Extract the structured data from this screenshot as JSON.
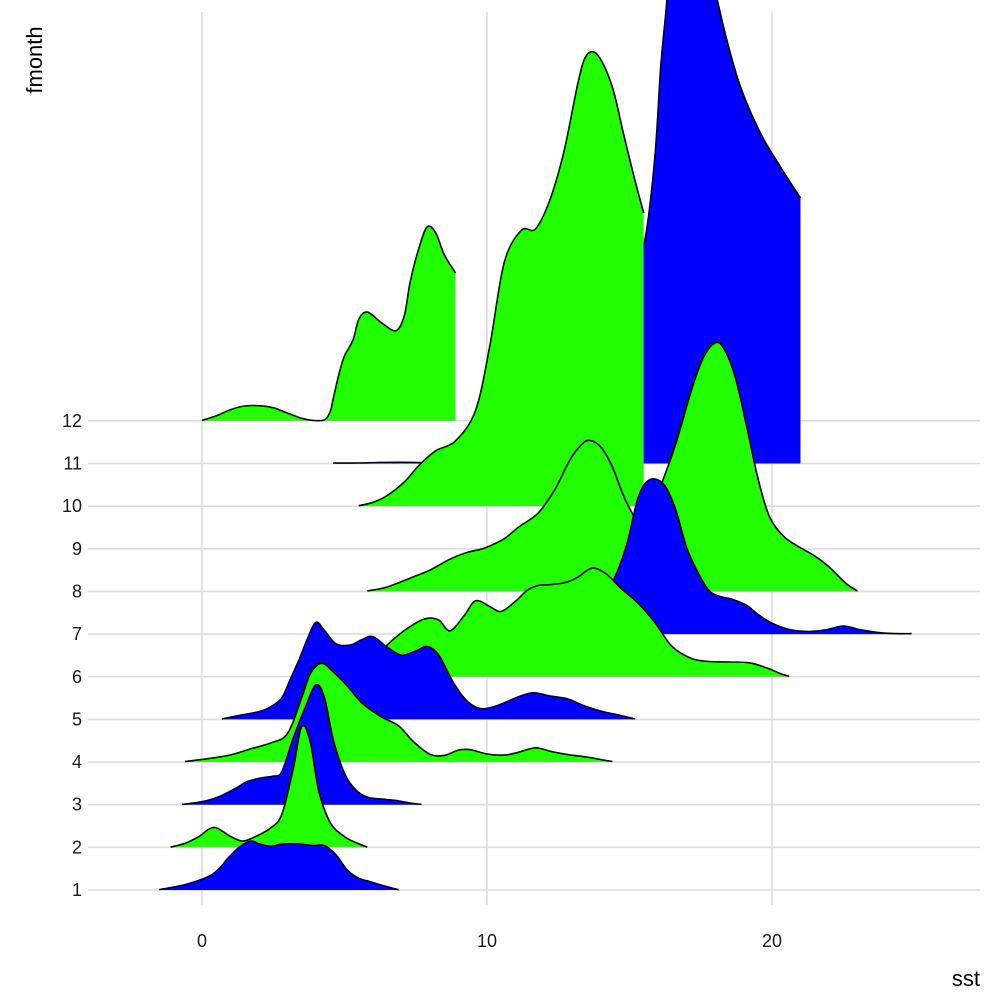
{
  "chart_data": {
    "type": "ridgeline",
    "xlabel": "sst",
    "ylabel": "fmonth",
    "x_ticks": [
      0,
      10,
      20
    ],
    "xlim": [
      -4,
      27.3
    ],
    "grid": true,
    "colors": {
      "odd": "#0000ff",
      "even": "#22ff00"
    },
    "series": [
      {
        "name": "1",
        "fill": "#0000ff",
        "range": [
          -1.5,
          6.9
        ],
        "points": [
          [
            -1.5,
            0.3
          ],
          [
            -0.6,
            5.4
          ],
          [
            0.2,
            13.1
          ],
          [
            0.6,
            21.2
          ],
          [
            0.9,
            31.4
          ],
          [
            1.3,
            42.6
          ],
          [
            1.7,
            48.9
          ],
          [
            2.0,
            46.2
          ],
          [
            2.4,
            43.6
          ],
          [
            2.7,
            45.3
          ],
          [
            3.0,
            46.2
          ],
          [
            3.5,
            45.7
          ],
          [
            3.9,
            44.4
          ],
          [
            4.3,
            44.4
          ],
          [
            4.7,
            35.3
          ],
          [
            5.1,
            19.9
          ],
          [
            5.5,
            11.8
          ],
          [
            5.9,
            8.4
          ],
          [
            6.3,
            4.9
          ],
          [
            6.7,
            1.7
          ],
          [
            6.9,
            0.3
          ]
        ]
      },
      {
        "name": "2",
        "fill": "#22ff00",
        "range": [
          -1.1,
          5.8
        ],
        "points": [
          [
            -1.1,
            0.2
          ],
          [
            -0.6,
            4.0
          ],
          [
            -0.1,
            11.0
          ],
          [
            0.2,
            17.6
          ],
          [
            0.4,
            20.0
          ],
          [
            0.6,
            18.3
          ],
          [
            1.0,
            11.0
          ],
          [
            1.4,
            6.4
          ],
          [
            1.8,
            9.8
          ],
          [
            2.4,
            19.2
          ],
          [
            2.8,
            33.0
          ],
          [
            3.2,
            78.4
          ],
          [
            3.5,
            120.8
          ],
          [
            3.8,
            105.4
          ],
          [
            4.1,
            56.4
          ],
          [
            4.5,
            24.7
          ],
          [
            5.0,
            10.7
          ],
          [
            5.4,
            4.8
          ],
          [
            5.8,
            0.2
          ]
        ]
      },
      {
        "name": "3",
        "fill": "#0000ff",
        "range": [
          -0.7,
          7.7
        ],
        "points": [
          [
            -0.7,
            0.3
          ],
          [
            0.0,
            3.0
          ],
          [
            0.6,
            8.1
          ],
          [
            1.2,
            16.7
          ],
          [
            1.6,
            23.3
          ],
          [
            2.1,
            26.9
          ],
          [
            2.5,
            28.5
          ],
          [
            2.8,
            33.0
          ],
          [
            3.2,
            66.3
          ],
          [
            3.6,
            95.5
          ],
          [
            4.0,
            119.7
          ],
          [
            4.3,
            106.7
          ],
          [
            4.6,
            65.8
          ],
          [
            5.0,
            31.4
          ],
          [
            5.4,
            14.8
          ],
          [
            5.8,
            7.6
          ],
          [
            6.3,
            5.6
          ],
          [
            6.8,
            4.3
          ],
          [
            7.3,
            1.7
          ],
          [
            7.7,
            0.3
          ]
        ]
      },
      {
        "name": "4",
        "fill": "#22ff00",
        "range": [
          -0.6,
          14.4
        ],
        "points": [
          [
            -0.6,
            0.5
          ],
          [
            0.3,
            3.8
          ],
          [
            1.0,
            7.1
          ],
          [
            1.7,
            13.1
          ],
          [
            2.4,
            19.0
          ],
          [
            3.0,
            28.5
          ],
          [
            3.5,
            64.2
          ],
          [
            3.8,
            88.3
          ],
          [
            4.2,
            98.8
          ],
          [
            4.6,
            90.2
          ],
          [
            5.1,
            76.0
          ],
          [
            5.6,
            59.4
          ],
          [
            6.3,
            45.1
          ],
          [
            6.9,
            36.3
          ],
          [
            7.4,
            20.9
          ],
          [
            8.0,
            7.8
          ],
          [
            8.5,
            6.6
          ],
          [
            9.0,
            11.9
          ],
          [
            9.4,
            12.4
          ],
          [
            10.0,
            8.0
          ],
          [
            10.6,
            6.9
          ],
          [
            11.1,
            9.7
          ],
          [
            11.7,
            14.2
          ],
          [
            12.2,
            10.9
          ],
          [
            12.8,
            7.6
          ],
          [
            13.5,
            5.0
          ],
          [
            14.0,
            2.4
          ],
          [
            14.4,
            0.5
          ]
        ]
      },
      {
        "name": "5",
        "fill": "#0000ff",
        "range": [
          0.7,
          15.2
        ],
        "points": [
          [
            0.7,
            0.5
          ],
          [
            1.4,
            4.5
          ],
          [
            2.0,
            7.8
          ],
          [
            2.4,
            12.4
          ],
          [
            2.8,
            21.6
          ],
          [
            3.1,
            40.2
          ],
          [
            3.4,
            59.2
          ],
          [
            3.7,
            80.6
          ],
          [
            4.0,
            97.1
          ],
          [
            4.3,
            88.8
          ],
          [
            4.7,
            75.7
          ],
          [
            5.2,
            74.3
          ],
          [
            5.6,
            79.7
          ],
          [
            6.0,
            82.8
          ],
          [
            6.5,
            72.2
          ],
          [
            7.0,
            64.2
          ],
          [
            7.5,
            68.3
          ],
          [
            7.9,
            72.9
          ],
          [
            8.3,
            64.7
          ],
          [
            8.8,
            37.9
          ],
          [
            9.3,
            18.5
          ],
          [
            9.8,
            10.7
          ],
          [
            10.4,
            14.2
          ],
          [
            11.0,
            21.4
          ],
          [
            11.6,
            26.6
          ],
          [
            12.2,
            23.5
          ],
          [
            12.8,
            20.7
          ],
          [
            13.4,
            13.8
          ],
          [
            14.0,
            8.3
          ],
          [
            14.6,
            4.5
          ],
          [
            15.2,
            0.5
          ]
        ]
      },
      {
        "name": "6",
        "fill": "#22ff00",
        "range": [
          5.0,
          20.6
        ],
        "points": [
          [
            5.0,
            0.5
          ],
          [
            5.8,
            11.4
          ],
          [
            6.5,
            31.8
          ],
          [
            7.1,
            46.2
          ],
          [
            7.8,
            57.8
          ],
          [
            8.3,
            56.9
          ],
          [
            8.7,
            45.9
          ],
          [
            9.2,
            61.1
          ],
          [
            9.6,
            76.0
          ],
          [
            10.1,
            70.1
          ],
          [
            10.5,
            65.4
          ],
          [
            11.0,
            75.5
          ],
          [
            11.4,
            86.2
          ],
          [
            11.8,
            91.3
          ],
          [
            12.3,
            92.3
          ],
          [
            12.8,
            94.6
          ],
          [
            13.2,
            99.8
          ],
          [
            13.7,
            108.6
          ],
          [
            14.2,
            102.4
          ],
          [
            14.7,
            88.5
          ],
          [
            15.3,
            73.6
          ],
          [
            15.9,
            54.0
          ],
          [
            16.5,
            30.1
          ],
          [
            17.2,
            18.0
          ],
          [
            17.8,
            15.2
          ],
          [
            18.5,
            14.7
          ],
          [
            19.2,
            14.0
          ],
          [
            19.8,
            9.0
          ],
          [
            20.3,
            3.1
          ],
          [
            20.6,
            0.5
          ]
        ]
      },
      {
        "name": "7",
        "fill": "#0000ff",
        "range": [
          11.3,
          24.9
        ],
        "points": [
          [
            11.3,
            0.5
          ],
          [
            11.9,
            1.7
          ],
          [
            12.6,
            6.4
          ],
          [
            13.3,
            18.3
          ],
          [
            13.9,
            32.3
          ],
          [
            14.4,
            51.6
          ],
          [
            14.9,
            89.0
          ],
          [
            15.3,
            136.0
          ],
          [
            15.7,
            154.3
          ],
          [
            16.2,
            149.8
          ],
          [
            16.6,
            126.2
          ],
          [
            17.0,
            86.9
          ],
          [
            17.4,
            61.6
          ],
          [
            17.8,
            43.2
          ],
          [
            18.2,
            37.5
          ],
          [
            18.6,
            34.9
          ],
          [
            19.1,
            29.0
          ],
          [
            19.5,
            19.9
          ],
          [
            20.0,
            10.9
          ],
          [
            20.6,
            4.7
          ],
          [
            21.3,
            2.6
          ],
          [
            21.9,
            4.3
          ],
          [
            22.5,
            8.1
          ],
          [
            23.0,
            5.0
          ],
          [
            23.7,
            1.7
          ],
          [
            24.3,
            0.5
          ],
          [
            24.9,
            0.5
          ]
        ]
      },
      {
        "name": "8",
        "fill": "#22ff00",
        "range": [
          5.8,
          23.0
        ],
        "points": [
          [
            5.8,
            0.5
          ],
          [
            6.5,
            4.5
          ],
          [
            7.3,
            13.3
          ],
          [
            8.0,
            21.4
          ],
          [
            8.7,
            32.3
          ],
          [
            9.3,
            39.0
          ],
          [
            9.9,
            43.3
          ],
          [
            10.6,
            52.7
          ],
          [
            11.1,
            64.2
          ],
          [
            11.8,
            78.6
          ],
          [
            12.4,
            102.7
          ],
          [
            12.9,
            131.0
          ],
          [
            13.3,
            146.3
          ],
          [
            13.6,
            151.1
          ],
          [
            14.0,
            144.2
          ],
          [
            14.4,
            124.6
          ],
          [
            14.9,
            89.0
          ],
          [
            15.5,
            65.4
          ],
          [
            16.0,
            98.6
          ],
          [
            16.6,
            145.6
          ],
          [
            17.2,
            203.6
          ],
          [
            17.6,
            234.2
          ],
          [
            18.0,
            248.5
          ],
          [
            18.3,
            243.5
          ],
          [
            18.7,
            215.7
          ],
          [
            19.1,
            166.9
          ],
          [
            19.5,
            114.3
          ],
          [
            19.9,
            75.7
          ],
          [
            20.4,
            55.4
          ],
          [
            20.9,
            45.4
          ],
          [
            21.5,
            35.6
          ],
          [
            22.0,
            24.7
          ],
          [
            22.6,
            8.0
          ],
          [
            23.0,
            0.5
          ]
        ]
      },
      {
        "name": "10",
        "fill": "#22ff00",
        "range": [
          5.5,
          15.5
        ],
        "points": [
          [
            5.5,
            0.5
          ],
          [
            6.0,
            3.8
          ],
          [
            6.5,
            10.7
          ],
          [
            7.1,
            24.2
          ],
          [
            7.6,
            40.4
          ],
          [
            8.2,
            55.4
          ],
          [
            8.9,
            65.4
          ],
          [
            9.6,
            95.8
          ],
          [
            10.1,
            160.3
          ],
          [
            10.6,
            243.2
          ],
          [
            11.2,
            275.7
          ],
          [
            11.7,
            277.2
          ],
          [
            12.2,
            305.7
          ],
          [
            12.7,
            354.5
          ],
          [
            13.2,
            424.3
          ],
          [
            13.5,
            451.1
          ],
          [
            13.9,
            450.6
          ],
          [
            14.4,
            419.1
          ],
          [
            14.8,
            371.2
          ],
          [
            15.2,
            325.0
          ],
          [
            15.5,
            293.2
          ]
        ]
      },
      {
        "name": "11",
        "fill": "#0000ff",
        "range": [
          4.6,
          21.0
        ],
        "points": [
          [
            4.6,
            0.5
          ],
          [
            5.5,
            0.5
          ],
          [
            6.5,
            1.1
          ],
          [
            7.4,
            1.1
          ],
          [
            8.2,
            0.5
          ],
          [
            9.0,
            1.1
          ],
          [
            9.5,
            3.1
          ],
          [
            10.0,
            5.6
          ],
          [
            10.7,
            9.0
          ],
          [
            11.5,
            10.7
          ],
          [
            12.2,
            12.4
          ],
          [
            12.9,
            13.6
          ],
          [
            13.6,
            21.4
          ],
          [
            14.1,
            48.9
          ],
          [
            14.6,
            88.3
          ],
          [
            15.0,
            166.9
          ],
          [
            15.3,
            197.0
          ],
          [
            15.6,
            233.3
          ],
          [
            15.9,
            309.3
          ],
          [
            16.1,
            397.9
          ],
          [
            16.3,
            458.5
          ],
          [
            16.5,
            532.4
          ],
          [
            16.8,
            537.7
          ],
          [
            17.2,
            533.6
          ],
          [
            17.6,
            525.5
          ],
          [
            18.0,
            473.8
          ],
          [
            18.4,
            425.3
          ],
          [
            18.9,
            376.3
          ],
          [
            19.6,
            330.1
          ],
          [
            20.3,
            296.5
          ],
          [
            21.0,
            265.6
          ]
        ]
      },
      {
        "name": "12",
        "fill": "#22ff00",
        "range": [
          0.0,
          8.9
        ],
        "points": [
          [
            0.0,
            0.5
          ],
          [
            0.5,
            5.0
          ],
          [
            1.0,
            11.2
          ],
          [
            1.5,
            14.9
          ],
          [
            2.0,
            15.2
          ],
          [
            2.5,
            13.1
          ],
          [
            3.0,
            7.8
          ],
          [
            3.5,
            2.6
          ],
          [
            3.9,
            0.5
          ],
          [
            4.3,
            1.1
          ],
          [
            4.5,
            9.4
          ],
          [
            4.6,
            21.6
          ],
          [
            4.8,
            46.2
          ],
          [
            5.0,
            64.9
          ],
          [
            5.3,
            80.9
          ],
          [
            5.5,
            101.4
          ],
          [
            5.8,
            108.8
          ],
          [
            6.3,
            98.1
          ],
          [
            6.8,
            90.2
          ],
          [
            7.1,
            105.2
          ],
          [
            7.3,
            138.1
          ],
          [
            7.6,
            171.7
          ],
          [
            7.9,
            193.9
          ],
          [
            8.2,
            188.1
          ],
          [
            8.5,
            166.3
          ],
          [
            8.9,
            147.8
          ]
        ]
      }
    ]
  }
}
